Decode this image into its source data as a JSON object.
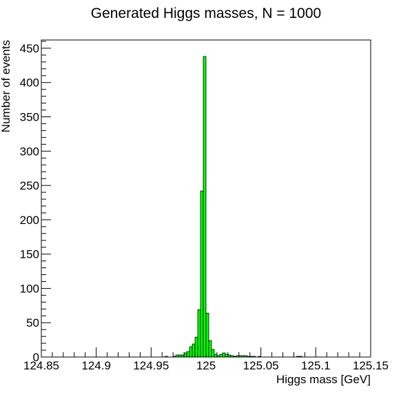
{
  "chart_data": {
    "type": "bar",
    "title": "Generated Higgs masses, N = 1000",
    "xlabel": "Higgs mass [GeV]",
    "ylabel": "Number of events",
    "xlim": [
      124.85,
      125.15
    ],
    "ylim": [
      0,
      462
    ],
    "bin_width": 0.0025,
    "grid": false,
    "legend": "none",
    "fill_color": "#00ff00",
    "line_color": "#000000",
    "x_ticks": [
      {
        "value": 124.85,
        "label": "124.85"
      },
      {
        "value": 124.9,
        "label": "124.9"
      },
      {
        "value": 124.95,
        "label": "124.95"
      },
      {
        "value": 125.0,
        "label": "125"
      },
      {
        "value": 125.05,
        "label": "125.05"
      },
      {
        "value": 125.1,
        "label": "125.1"
      },
      {
        "value": 125.15,
        "label": "125.15"
      }
    ],
    "y_ticks": [
      {
        "value": 0,
        "label": "0"
      },
      {
        "value": 50,
        "label": "50"
      },
      {
        "value": 100,
        "label": "100"
      },
      {
        "value": 150,
        "label": "150"
      },
      {
        "value": 200,
        "label": "200"
      },
      {
        "value": 250,
        "label": "250"
      },
      {
        "value": 300,
        "label": "300"
      },
      {
        "value": 350,
        "label": "350"
      },
      {
        "value": 400,
        "label": "400"
      },
      {
        "value": 450,
        "label": "450"
      }
    ],
    "bins": [
      {
        "x": 124.9625,
        "y": 1
      },
      {
        "x": 124.97,
        "y": 1
      },
      {
        "x": 124.9725,
        "y": 3
      },
      {
        "x": 124.975,
        "y": 3
      },
      {
        "x": 124.9775,
        "y": 3
      },
      {
        "x": 124.98,
        "y": 6
      },
      {
        "x": 124.9825,
        "y": 8
      },
      {
        "x": 124.985,
        "y": 15
      },
      {
        "x": 124.9875,
        "y": 19
      },
      {
        "x": 124.99,
        "y": 29
      },
      {
        "x": 124.9925,
        "y": 69
      },
      {
        "x": 124.995,
        "y": 242
      },
      {
        "x": 124.9975,
        "y": 438
      },
      {
        "x": 125.0,
        "y": 64
      },
      {
        "x": 125.0025,
        "y": 24
      },
      {
        "x": 125.005,
        "y": 11
      },
      {
        "x": 125.0075,
        "y": 4
      },
      {
        "x": 125.01,
        "y": 2
      },
      {
        "x": 125.0125,
        "y": 4
      },
      {
        "x": 125.015,
        "y": 6
      },
      {
        "x": 125.0175,
        "y": 4
      },
      {
        "x": 125.02,
        "y": 3
      },
      {
        "x": 125.0225,
        "y": 2
      },
      {
        "x": 125.025,
        "y": 1
      },
      {
        "x": 125.0275,
        "y": 2
      },
      {
        "x": 125.03,
        "y": 2
      },
      {
        "x": 125.0325,
        "y": 2
      },
      {
        "x": 125.035,
        "y": 2
      },
      {
        "x": 125.0375,
        "y": 1
      },
      {
        "x": 125.04,
        "y": 1
      },
      {
        "x": 125.0425,
        "y": 1
      },
      {
        "x": 125.0475,
        "y": 1
      },
      {
        "x": 125.0825,
        "y": 1
      },
      {
        "x": 125.085,
        "y": 1
      }
    ]
  }
}
